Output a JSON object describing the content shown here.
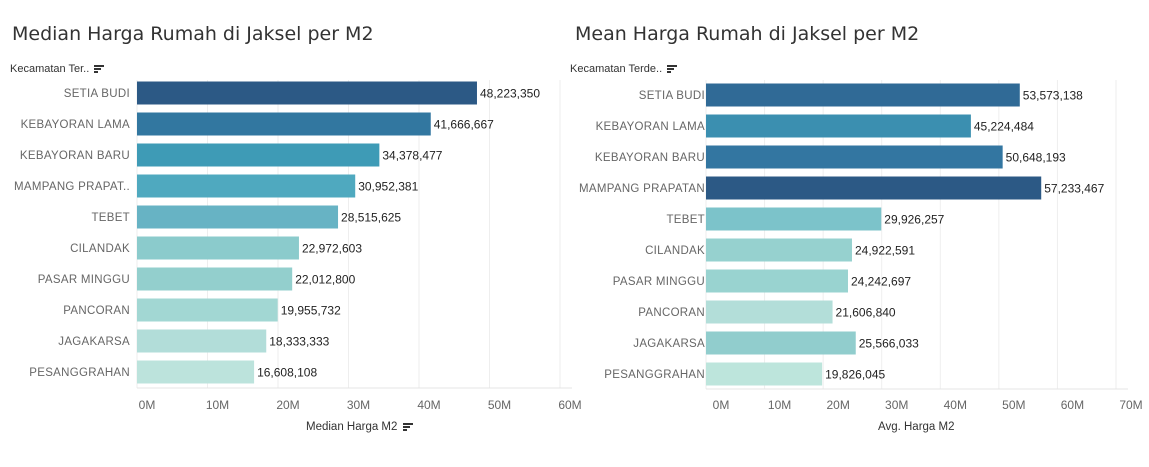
{
  "chart_data": [
    {
      "type": "bar",
      "orientation": "horizontal",
      "title": "Median Harga Rumah di Jaksel per M2",
      "row_header": "Kecamatan Ter..",
      "xlabel": "Median Harga M2",
      "categories": [
        "SETIA BUDI",
        "KEBAYORAN LAMA",
        "KEBAYORAN BARU",
        "MAMPANG PRAPAT..",
        "TEBET",
        "CILANDAK",
        "PASAR MINGGU",
        "PANCORAN",
        "JAGAKARSA",
        "PESANGGRAHAN"
      ],
      "values": [
        48223350,
        41666667,
        34378477,
        30952381,
        28515625,
        22972603,
        22012800,
        19955732,
        18333333,
        16608108
      ],
      "value_labels": [
        "48,223,350",
        "41,666,667",
        "34,378,477",
        "30,952,381",
        "28,515,625",
        "22,972,603",
        "22,012,800",
        "19,955,732",
        "18,333,333",
        "16,608,108"
      ],
      "colors": [
        "#2c5985",
        "#3277a0",
        "#3e9bb6",
        "#4fa9bf",
        "#67b3c4",
        "#8bcbcc",
        "#93cfcd",
        "#a2d7d3",
        "#b2ddd9",
        "#bce3dc"
      ],
      "tick_labels": [
        "0M",
        "10M",
        "20M",
        "30M",
        "40M",
        "50M",
        "60M"
      ],
      "xlim": [
        0,
        60000000
      ],
      "grid": true,
      "legend": "none"
    },
    {
      "type": "bar",
      "orientation": "horizontal",
      "title": "Mean Harga Rumah di Jaksel per M2",
      "row_header": "Kecamatan Terde..",
      "xlabel": "Avg. Harga M2",
      "categories": [
        "SETIA BUDI",
        "KEBAYORAN LAMA",
        "KEBAYORAN BARU",
        "MAMPANG PRAPATAN",
        "TEBET",
        "CILANDAK",
        "PASAR MINGGU",
        "PANCORAN",
        "JAGAKARSA",
        "PESANGGRAHAN"
      ],
      "values": [
        53573138,
        45224484,
        50648193,
        57233467,
        29926257,
        24922591,
        24242697,
        21606840,
        25566033,
        19826045
      ],
      "value_labels": [
        "53,573,138",
        "45,224,484",
        "50,648,193",
        "57,233,467",
        "29,926,257",
        "24,922,591",
        "24,242,697",
        "21,606,840",
        "25,566,033",
        "19,826,045"
      ],
      "colors": [
        "#306a96",
        "#3b8fb0",
        "#3376a1",
        "#2c5985",
        "#7cc3ca",
        "#96d1cf",
        "#99d3d0",
        "#b3ded9",
        "#91cdcd",
        "#bde5dc"
      ],
      "tick_labels": [
        "0M",
        "10M",
        "20M",
        "30M",
        "40M",
        "50M",
        "60M",
        "70M"
      ],
      "xlim": [
        0,
        70000000
      ],
      "grid": true,
      "legend": "none"
    }
  ]
}
